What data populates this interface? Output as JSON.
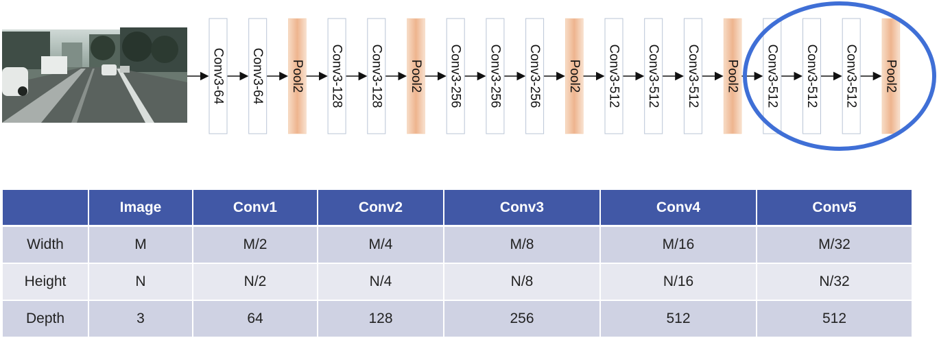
{
  "layers": [
    {
      "label": "Conv3-64",
      "kind": "conv"
    },
    {
      "label": "Conv3-64",
      "kind": "conv"
    },
    {
      "label": "Pool2",
      "kind": "pool"
    },
    {
      "label": "Conv3-128",
      "kind": "conv"
    },
    {
      "label": "Conv3-128",
      "kind": "conv"
    },
    {
      "label": "Pool2",
      "kind": "pool"
    },
    {
      "label": "Conv3-256",
      "kind": "conv"
    },
    {
      "label": "Conv3-256",
      "kind": "conv"
    },
    {
      "label": "Conv3-256",
      "kind": "conv"
    },
    {
      "label": "Pool2",
      "kind": "pool"
    },
    {
      "label": "Conv3-512",
      "kind": "conv"
    },
    {
      "label": "Conv3-512",
      "kind": "conv"
    },
    {
      "label": "Conv3-512",
      "kind": "conv"
    },
    {
      "label": "Pool2",
      "kind": "pool"
    },
    {
      "label": "Conv3-512",
      "kind": "conv"
    },
    {
      "label": "Conv3-512",
      "kind": "conv"
    },
    {
      "label": "Conv3-512",
      "kind": "conv"
    },
    {
      "label": "Pool2",
      "kind": "pool"
    }
  ],
  "highlight": {
    "color": "#3f6fd6",
    "covers": "last block"
  },
  "colors": {
    "header_bg": "#4158a6",
    "pool_fill": "#f3c9a8",
    "conv_border": "#b9c4d6"
  },
  "table": {
    "headers": [
      "",
      "Image",
      "Conv1",
      "Conv2",
      "Conv3",
      "Conv4",
      "Conv5"
    ],
    "rows": [
      {
        "label": "Width",
        "values": [
          "M",
          "M/2",
          "M/4",
          "M/8",
          "M/16",
          "M/32"
        ]
      },
      {
        "label": "Height",
        "values": [
          "N",
          "N/2",
          "N/4",
          "N/8",
          "N/16",
          "N/32"
        ]
      },
      {
        "label": "Depth",
        "values": [
          "3",
          "64",
          "128",
          "256",
          "512",
          "512"
        ]
      }
    ]
  }
}
